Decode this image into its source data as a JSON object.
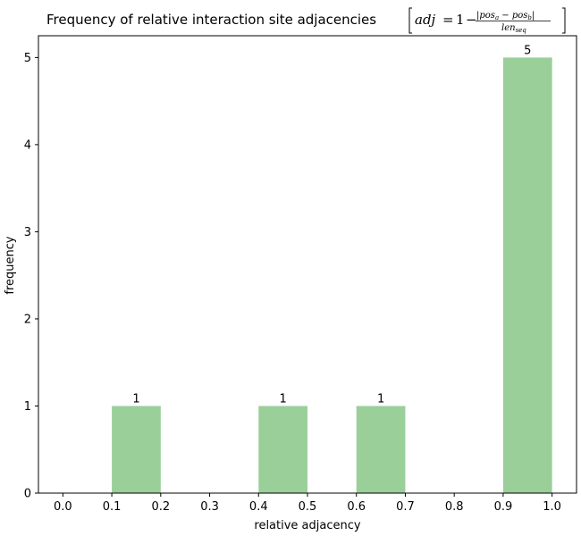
{
  "chart_data": {
    "type": "bar",
    "title": "Frequency of relative interaction site adjacencies",
    "title_formula": {
      "lhs": "adj",
      "equals": "=",
      "one": "1",
      "minus": "−",
      "numerator": "|pos",
      "numerator_sub_a": "a",
      "numerator_mid": " − pos",
      "numerator_sub_b": "b",
      "numerator_end": "|",
      "denominator": "len",
      "denominator_sub": "seq"
    },
    "xlabel": "relative adjacency",
    "ylabel": "frequency",
    "xlim": [
      -0.05,
      1.05
    ],
    "ylim": [
      0,
      5.25
    ],
    "xticks": [
      "0.0",
      "0.1",
      "0.2",
      "0.3",
      "0.4",
      "0.5",
      "0.6",
      "0.7",
      "0.8",
      "0.9",
      "1.0"
    ],
    "yticks": [
      "0",
      "1",
      "2",
      "3",
      "4",
      "5"
    ],
    "bins": [
      {
        "start": 0.1,
        "end": 0.2,
        "value": 1,
        "label": "1"
      },
      {
        "start": 0.4,
        "end": 0.5,
        "value": 1,
        "label": "1"
      },
      {
        "start": 0.6,
        "end": 0.7,
        "value": 1,
        "label": "1"
      },
      {
        "start": 0.9,
        "end": 1.0,
        "value": 5,
        "label": "5"
      }
    ],
    "bar_color": "#9acf9a",
    "grid": false
  }
}
